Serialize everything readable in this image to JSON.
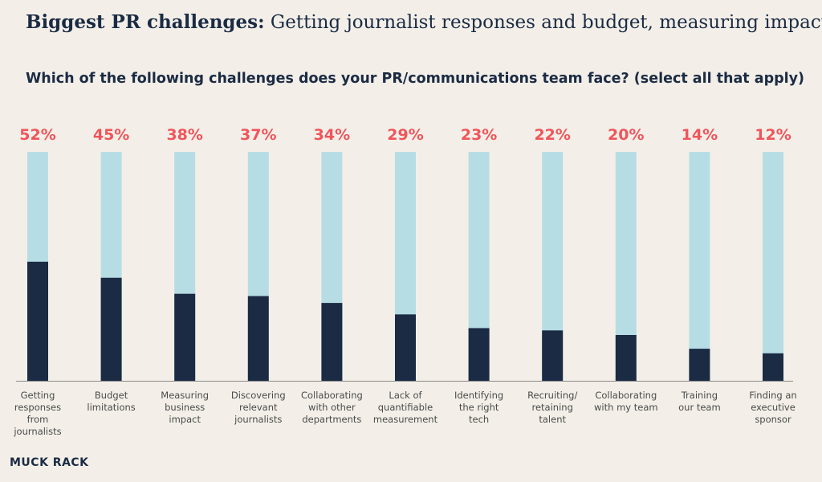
{
  "header": {
    "title_bold": "Biggest PR challenges:",
    "title_rest": "Getting journalist responses and budget, measuring impact",
    "question": "Which of the following challenges does your PR/communications team face? (select all that apply)"
  },
  "brand": {
    "logo_text": "MUCK RACK"
  },
  "colors": {
    "filled": "#1b2b44",
    "track": "#b7dde4",
    "label": "#f0555b",
    "background": "#f3efe8"
  },
  "chart_data": {
    "type": "bar",
    "categories": [
      "Getting responses from journalists",
      "Budget limitations",
      "Measuring business impact",
      "Discovering relevant journalists",
      "Collaborating with other departments",
      "Lack of quantifiable measurement",
      "Identifying the right tech",
      "Recruiting/ retaining talent",
      "Collaborating with my team",
      "Training our team",
      "Finding an executive sponsor"
    ],
    "category_lines": [
      [
        "Getting",
        "responses",
        "from",
        "journalists"
      ],
      [
        "Budget",
        "limitations"
      ],
      [
        "Measuring",
        "business",
        "impact"
      ],
      [
        "Discovering",
        "relevant",
        "journalists"
      ],
      [
        "Collaborating",
        "with other",
        "departments"
      ],
      [
        "Lack of",
        "quantifiable",
        "measurement"
      ],
      [
        "Identifying",
        "the right",
        "tech"
      ],
      [
        "Recruiting/",
        "retaining",
        "talent"
      ],
      [
        "Collaborating",
        "with my team"
      ],
      [
        "Training",
        "our team"
      ],
      [
        "Finding an",
        "executive",
        "sponsor"
      ]
    ],
    "values": [
      52,
      45,
      38,
      37,
      34,
      29,
      23,
      22,
      20,
      14,
      12
    ],
    "value_labels": [
      "52%",
      "45%",
      "38%",
      "37%",
      "34%",
      "29%",
      "23%",
      "22%",
      "20%",
      "14%",
      "12%"
    ],
    "ylim": [
      0,
      100
    ],
    "grid": false,
    "legend": "none"
  }
}
